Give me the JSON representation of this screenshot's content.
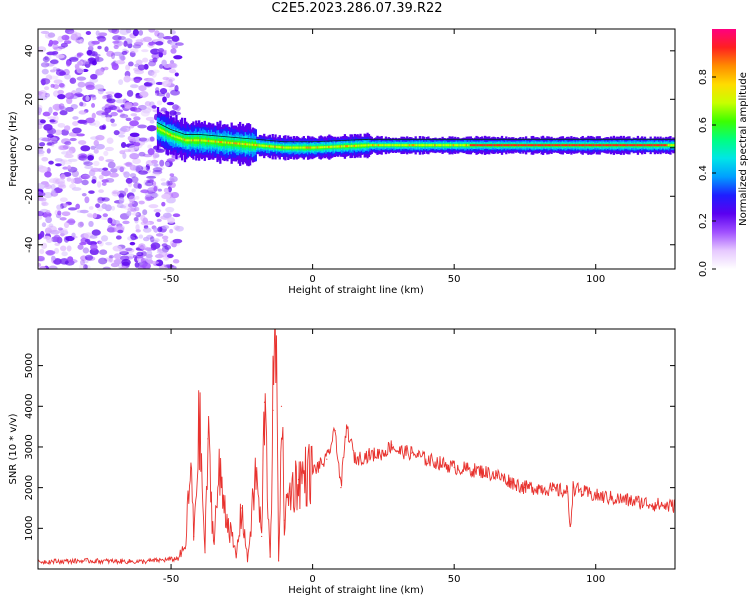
{
  "title": "C2E5.2023.286.07.39.R22",
  "colors": {
    "snr_line": "#e8322e",
    "frame": "#000000",
    "background": "#ffffff"
  },
  "chart_data": [
    {
      "type": "heatmap",
      "xlabel": "Height of straight line (km)",
      "ylabel": "Frequency (Hz)",
      "xlim": [
        -97,
        128
      ],
      "ylim": [
        -50,
        49
      ],
      "xticks": [
        -50,
        0,
        50,
        100
      ],
      "yticks": [
        -40,
        -20,
        0,
        20,
        40
      ],
      "colorbar": {
        "label": "Normalized spectral amplitude",
        "range": [
          0.0,
          1.0
        ],
        "ticks": [
          0.0,
          0.2,
          0.4,
          0.6,
          0.8
        ],
        "colormap": [
          "#ffffff",
          "#e6c8ff",
          "#a050ff",
          "#5a00f0",
          "#1e1eff",
          "#00a0ff",
          "#00e6e6",
          "#00ff80",
          "#3cff00",
          "#c8ff00",
          "#ffdc00",
          "#ff8c00",
          "#ff2020",
          "#ff0080"
        ]
      },
      "ridge_line": {
        "x": [
          -55,
          -50,
          -45,
          -40,
          -30,
          -20,
          -10,
          0,
          20,
          50,
          80,
          100,
          128
        ],
        "y": [
          8,
          5,
          3,
          3,
          2,
          1,
          0,
          0,
          1,
          1,
          1,
          1,
          1
        ]
      },
      "noise_region_x": [
        -97,
        -47
      ],
      "grid": false
    },
    {
      "type": "line",
      "xlabel": "Height of straight line (km)",
      "ylabel": "SNR (10 * v/v)",
      "xlim": [
        -97,
        128
      ],
      "ylim": [
        0,
        5900
      ],
      "xticks": [
        -50,
        0,
        50,
        100
      ],
      "yticks": [
        1000,
        2000,
        3000,
        4000,
        5000
      ],
      "series": [
        {
          "x": [
            -97,
            -80,
            -60,
            -48,
            -45,
            -43,
            -42,
            -40,
            -38,
            -37,
            -35,
            -33,
            -30,
            -27,
            -25,
            -23,
            -20,
            -18,
            -17,
            -15,
            -14,
            -13,
            -12,
            -11,
            -10,
            -8,
            -5,
            0,
            5,
            8,
            10,
            12,
            15,
            20,
            25,
            28,
            30,
            35,
            40,
            45,
            50,
            55,
            60,
            65,
            70,
            75,
            80,
            85,
            90,
            91,
            92,
            95,
            100,
            105,
            110,
            115,
            120,
            125,
            128
          ],
          "values": [
            180,
            200,
            180,
            250,
            500,
            2500,
            800,
            3650,
            400,
            3200,
            700,
            2300,
            1200,
            300,
            1500,
            200,
            2400,
            800,
            4100,
            300,
            3900,
            5900,
            200,
            4000,
            1200,
            1900,
            2200,
            2400,
            2700,
            3400,
            2000,
            3500,
            2700,
            2800,
            2850,
            3050,
            2900,
            2850,
            2700,
            2600,
            2500,
            2450,
            2400,
            2300,
            2150,
            2000,
            2000,
            1950,
            1900,
            1050,
            2000,
            1900,
            1800,
            1750,
            1700,
            1650,
            1600,
            1550,
            1550
          ]
        }
      ],
      "grid": false
    }
  ]
}
